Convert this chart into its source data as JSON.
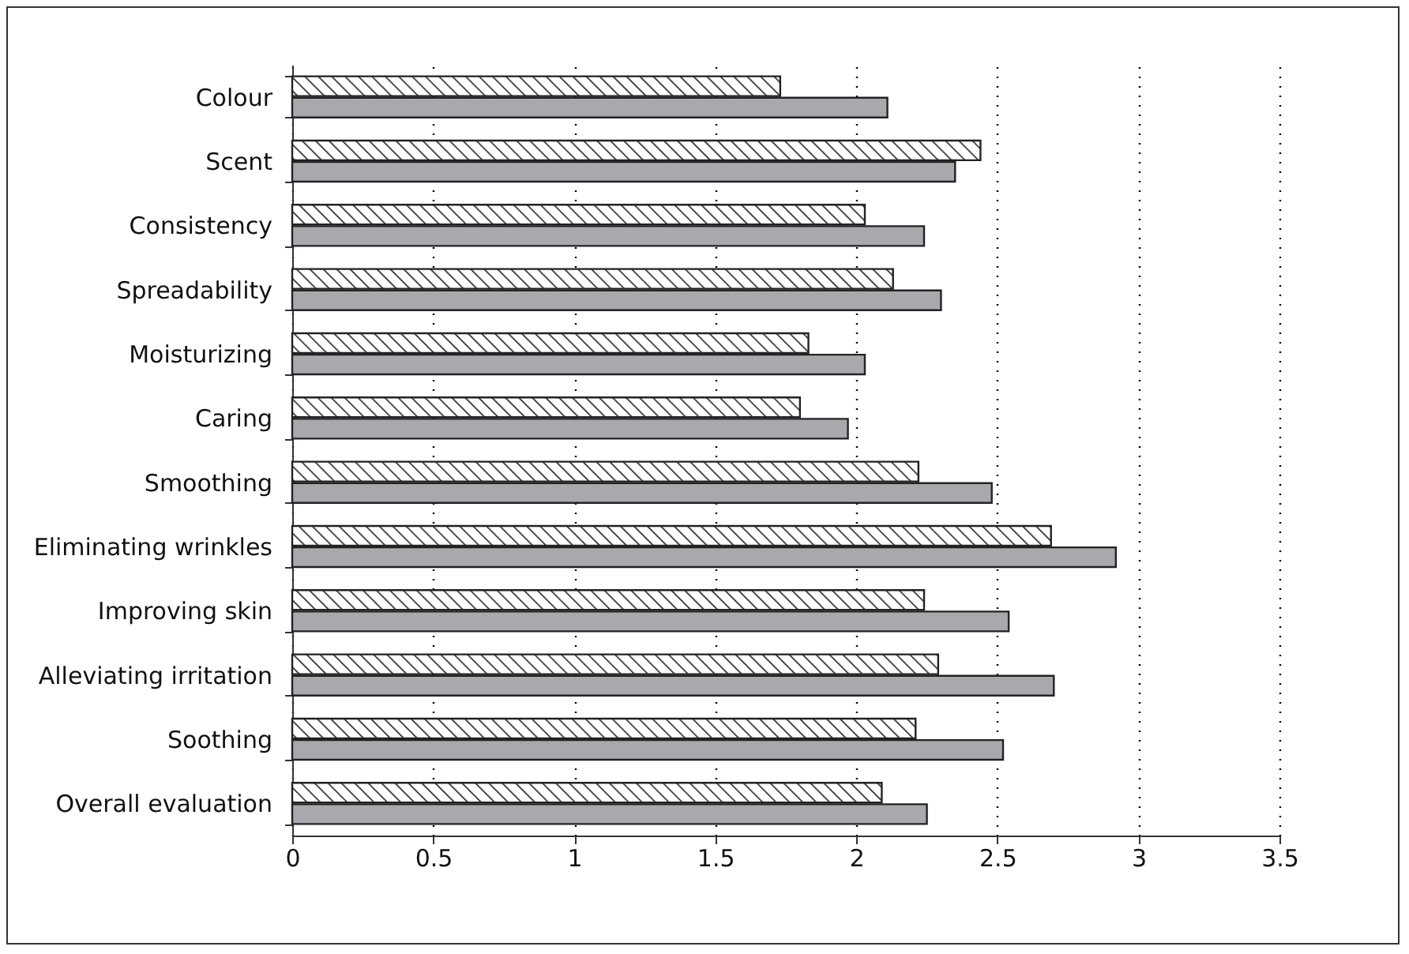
{
  "chart_data": {
    "type": "bar",
    "orientation": "horizontal",
    "categories": [
      "Colour",
      "Scent",
      "Consistency",
      "Spreadability",
      "Moisturizing",
      "Caring",
      "Smoothing",
      "Eliminating wrinkles",
      "Improving skin",
      "Alleviating irritation",
      "Soothing",
      "Overall evaluation"
    ],
    "series": [
      {
        "color": "#222222",
        "values": [
          1.73,
          2.44,
          2.03,
          2.13,
          1.83,
          1.8,
          2.22,
          2.69,
          2.24,
          2.29,
          2.21,
          2.09
        ]
      },
      {
        "color": "#a7a9ac",
        "values": [
          2.11,
          2.35,
          2.24,
          2.3,
          2.03,
          1.97,
          2.48,
          2.92,
          2.54,
          2.7,
          2.52,
          2.25
        ]
      }
    ],
    "xlim": [
      0,
      3.5
    ],
    "xticks": [
      0,
      0.5,
      1,
      1.5,
      2,
      2.5,
      3,
      3.5
    ],
    "grid": "x",
    "legend": false
  }
}
